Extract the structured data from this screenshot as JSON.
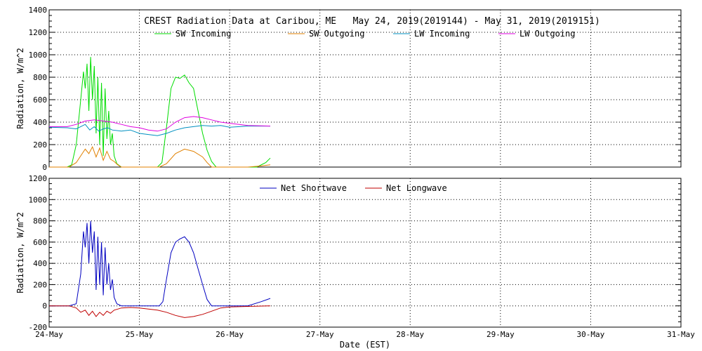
{
  "chart_data": [
    {
      "type": "line",
      "title": "CREST Radiation Data at Caribou, ME   May 24, 2019(2019144) - May 31, 2019(2019151)",
      "xlabel": "",
      "ylabel": "Radiation, W/m^2",
      "xlim": [
        0,
        7
      ],
      "ylim": [
        0,
        1400
      ],
      "yticks": [
        0,
        200,
        400,
        600,
        800,
        1000,
        1200,
        1400
      ],
      "grid": true,
      "legend_position": "top",
      "series": [
        {
          "name": "SW Incoming",
          "color": "#00dd00",
          "x": [
            0,
            0.12,
            0.2,
            0.25,
            0.3,
            0.35,
            0.38,
            0.4,
            0.42,
            0.44,
            0.46,
            0.48,
            0.5,
            0.52,
            0.54,
            0.56,
            0.58,
            0.6,
            0.62,
            0.64,
            0.66,
            0.68,
            0.7,
            0.72,
            0.75,
            0.8,
            0.85,
            1.0,
            1.12,
            1.2,
            1.25,
            1.3,
            1.35,
            1.4,
            1.45,
            1.5,
            1.55,
            1.6,
            1.65,
            1.7,
            1.75,
            1.8,
            1.85,
            1.9,
            2.0,
            2.1,
            2.2,
            2.3,
            2.4,
            2.45
          ],
          "y": [
            0,
            0,
            0,
            20,
            200,
            600,
            850,
            700,
            920,
            500,
            980,
            600,
            900,
            300,
            800,
            200,
            750,
            100,
            700,
            250,
            500,
            200,
            300,
            100,
            30,
            0,
            0,
            0,
            0,
            0,
            40,
            350,
            700,
            800,
            790,
            820,
            750,
            700,
            500,
            300,
            150,
            50,
            0,
            0,
            0,
            0,
            0,
            0,
            40,
            80
          ]
        },
        {
          "name": "SW Outgoing",
          "color": "#e08000",
          "x": [
            0,
            0.22,
            0.3,
            0.35,
            0.4,
            0.44,
            0.48,
            0.52,
            0.56,
            0.6,
            0.64,
            0.68,
            0.72,
            0.76,
            0.8,
            1.0,
            1.22,
            1.3,
            1.4,
            1.5,
            1.6,
            1.7,
            1.75,
            1.8,
            2.0,
            2.2,
            2.35,
            2.45
          ],
          "y": [
            0,
            0,
            40,
            100,
            160,
            120,
            180,
            90,
            170,
            60,
            140,
            70,
            50,
            20,
            0,
            0,
            0,
            30,
            120,
            160,
            140,
            90,
            40,
            0,
            0,
            0,
            10,
            20
          ]
        },
        {
          "name": "LW Incoming",
          "color": "#0090c0",
          "x": [
            0,
            0.2,
            0.3,
            0.4,
            0.45,
            0.5,
            0.55,
            0.6,
            0.65,
            0.7,
            0.8,
            0.9,
            1.0,
            1.1,
            1.2,
            1.3,
            1.4,
            1.5,
            1.6,
            1.7,
            1.8,
            1.9,
            2.0,
            2.2,
            2.45
          ],
          "y": [
            355,
            350,
            340,
            380,
            330,
            360,
            320,
            340,
            350,
            330,
            320,
            330,
            300,
            290,
            280,
            300,
            330,
            350,
            360,
            370,
            365,
            370,
            355,
            365,
            365
          ]
        },
        {
          "name": "LW Outgoing",
          "color": "#e000e0",
          "x": [
            0,
            0.2,
            0.3,
            0.4,
            0.5,
            0.6,
            0.7,
            0.8,
            0.9,
            1.0,
            1.1,
            1.2,
            1.3,
            1.4,
            1.5,
            1.6,
            1.7,
            1.8,
            1.9,
            2.0,
            2.2,
            2.45
          ],
          "y": [
            360,
            360,
            380,
            410,
            420,
            410,
            400,
            380,
            360,
            350,
            330,
            320,
            340,
            400,
            440,
            450,
            440,
            420,
            400,
            390,
            370,
            365
          ]
        }
      ]
    },
    {
      "type": "line",
      "title": "",
      "xlabel": "Date (EST)",
      "ylabel": "Radiation, W/m^2",
      "xlim": [
        0,
        7
      ],
      "ylim": [
        -200,
        1200
      ],
      "yticks": [
        -200,
        0,
        200,
        400,
        600,
        800,
        1000,
        1200
      ],
      "xticks": [
        "24-May",
        "25-May",
        "26-May",
        "27-May",
        "28-May",
        "29-May",
        "30-May",
        "31-May"
      ],
      "grid": true,
      "legend_position": "top",
      "series": [
        {
          "name": "Net Shortwave",
          "color": "#0000c0",
          "x": [
            0,
            0.22,
            0.3,
            0.35,
            0.38,
            0.4,
            0.42,
            0.44,
            0.46,
            0.48,
            0.5,
            0.52,
            0.54,
            0.56,
            0.58,
            0.6,
            0.62,
            0.64,
            0.66,
            0.68,
            0.7,
            0.72,
            0.75,
            0.8,
            1.0,
            1.22,
            1.26,
            1.3,
            1.35,
            1.4,
            1.45,
            1.5,
            1.55,
            1.6,
            1.65,
            1.7,
            1.75,
            1.8,
            1.85,
            2.0,
            2.2,
            2.35,
            2.45
          ],
          "y": [
            0,
            0,
            20,
            300,
            700,
            550,
            780,
            400,
            800,
            500,
            700,
            150,
            650,
            200,
            600,
            100,
            550,
            200,
            400,
            150,
            250,
            80,
            20,
            0,
            0,
            0,
            40,
            250,
            500,
            600,
            630,
            650,
            600,
            500,
            350,
            200,
            60,
            0,
            0,
            0,
            0,
            40,
            70
          ]
        },
        {
          "name": "Net Longwave",
          "color": "#c00000",
          "x": [
            0,
            0.22,
            0.3,
            0.35,
            0.4,
            0.44,
            0.48,
            0.52,
            0.56,
            0.6,
            0.64,
            0.68,
            0.72,
            0.76,
            0.8,
            0.9,
            1.0,
            1.2,
            1.3,
            1.4,
            1.5,
            1.6,
            1.7,
            1.8,
            1.9,
            2.0,
            2.2,
            2.45
          ],
          "y": [
            0,
            0,
            -20,
            -60,
            -40,
            -90,
            -50,
            -100,
            -60,
            -90,
            -50,
            -70,
            -40,
            -30,
            -20,
            -15,
            -20,
            -40,
            -60,
            -90,
            -110,
            -100,
            -80,
            -50,
            -20,
            -10,
            -5,
            0
          ]
        }
      ]
    }
  ]
}
